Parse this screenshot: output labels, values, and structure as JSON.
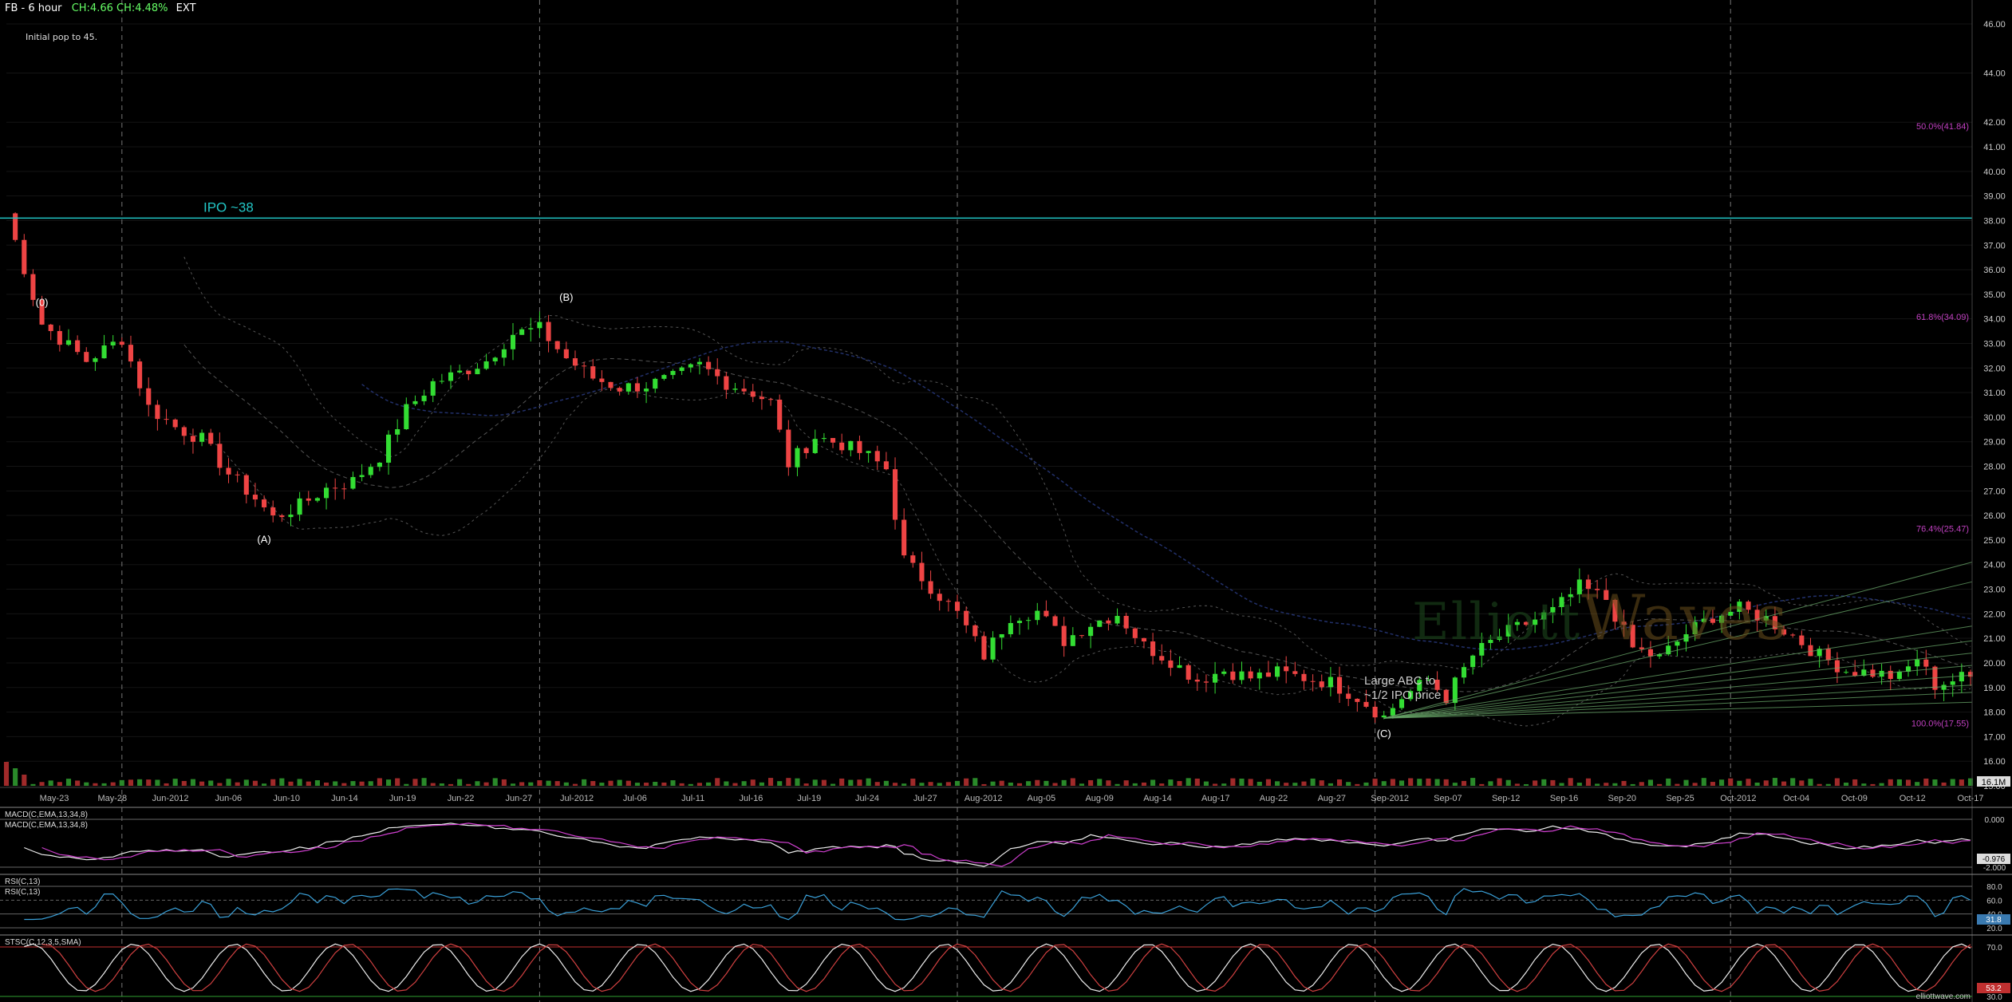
{
  "header": {
    "symbol": "FB - 6 hour",
    "change": "CH:4.66  CH:4.48%",
    "session": "EXT"
  },
  "note": "Initial pop to 45.",
  "watermark": {
    "left": "Elliott",
    "right": "Waves"
  },
  "colors": {
    "up": "#33dd33",
    "down": "#ee4444",
    "ipo_line": "#22c6c6",
    "fib": "#c040c0",
    "bg": "#000000"
  },
  "chart_data": {
    "type": "candlestick",
    "title": "FB - 6 hour",
    "price_axis": {
      "min": 15,
      "max": 46,
      "ticks": [
        "15.00",
        "16.00",
        "17.00",
        "18.00",
        "19.00",
        "20.00",
        "21.00",
        "22.00",
        "23.00",
        "24.00",
        "25.00",
        "26.00",
        "27.00",
        "28.00",
        "29.00",
        "30.00",
        "31.00",
        "32.00",
        "33.00",
        "34.00",
        "35.00",
        "36.00",
        "37.00",
        "38.00",
        "39.00",
        "40.00",
        "41.00",
        "42.00",
        "44.00",
        "46.00"
      ]
    },
    "x_labels": [
      "May-23",
      "May-28",
      "Jun-2012",
      "Jun-06",
      "Jun-10",
      "Jun-14",
      "Jun-19",
      "Jun-22",
      "Jun-27",
      "Jul-2012",
      "Jul-06",
      "Jul-11",
      "Jul-16",
      "Jul-19",
      "Jul-24",
      "Jul-27",
      "Aug-2012",
      "Aug-05",
      "Aug-09",
      "Aug-14",
      "Aug-17",
      "Aug-22",
      "Aug-27",
      "Sep-2012",
      "Sep-07",
      "Sep-12",
      "Sep-16",
      "Sep-20",
      "Sep-25",
      "Oct-2012",
      "Oct-04",
      "Oct-09",
      "Oct-12",
      "Oct-17"
    ],
    "close_path": [
      [
        0,
        38.3
      ],
      [
        4,
        33.8
      ],
      [
        9,
        32.3
      ],
      [
        13,
        33.2
      ],
      [
        16,
        30.4
      ],
      [
        19,
        29.6
      ],
      [
        22,
        29.1
      ],
      [
        25,
        27.7
      ],
      [
        28,
        26.7
      ],
      [
        30,
        25.9
      ],
      [
        33,
        26.4
      ],
      [
        36,
        27.1
      ],
      [
        39,
        27.4
      ],
      [
        42,
        28.4
      ],
      [
        45,
        30.3
      ],
      [
        48,
        31.4
      ],
      [
        51,
        31.8
      ],
      [
        54,
        32.3
      ],
      [
        57,
        33.4
      ],
      [
        60,
        33.6
      ],
      [
        63,
        32.4
      ],
      [
        66,
        31.6
      ],
      [
        69,
        31.2
      ],
      [
        72,
        31.3
      ],
      [
        75,
        31.6
      ],
      [
        78,
        32.1
      ],
      [
        81,
        31.4
      ],
      [
        84,
        31.0
      ],
      [
        86,
        30.6
      ],
      [
        88,
        28.1
      ],
      [
        91,
        29.2
      ],
      [
        94,
        28.9
      ],
      [
        97,
        28.4
      ],
      [
        99,
        27.9
      ],
      [
        101,
        24.2
      ],
      [
        104,
        23.1
      ],
      [
        107,
        22.0
      ],
      [
        110,
        20.3
      ],
      [
        113,
        21.9
      ],
      [
        116,
        22.1
      ],
      [
        119,
        20.9
      ],
      [
        122,
        21.6
      ],
      [
        125,
        22.0
      ],
      [
        128,
        20.7
      ],
      [
        131,
        20.1
      ],
      [
        134,
        19.3
      ],
      [
        137,
        19.7
      ],
      [
        140,
        19.4
      ],
      [
        143,
        19.6
      ],
      [
        146,
        19.4
      ],
      [
        149,
        19.2
      ],
      [
        152,
        18.6
      ],
      [
        155,
        17.8
      ],
      [
        157,
        18.6
      ],
      [
        160,
        19.3
      ],
      [
        162,
        18.6
      ],
      [
        165,
        20.3
      ],
      [
        168,
        21.1
      ],
      [
        171,
        21.6
      ],
      [
        174,
        22.1
      ],
      [
        177,
        23.1
      ],
      [
        180,
        22.6
      ],
      [
        183,
        20.6
      ],
      [
        186,
        20.2
      ],
      [
        189,
        21.2
      ],
      [
        192,
        21.9
      ],
      [
        195,
        22.2
      ],
      [
        198,
        21.8
      ],
      [
        201,
        21.1
      ],
      [
        204,
        20.3
      ],
      [
        207,
        19.7
      ],
      [
        210,
        19.6
      ],
      [
        213,
        19.4
      ],
      [
        215,
        20.2
      ],
      [
        217,
        19.1
      ],
      [
        220,
        19.4
      ]
    ],
    "x_count": 222,
    "volume_label": "16.1M",
    "wave_labels": [
      {
        "text": "(0)",
        "x": 4,
        "y": 34.4
      },
      {
        "text": "(A)",
        "x": 29,
        "y": 25.6
      },
      {
        "text": "(B)",
        "x": 63,
        "y": 34.6
      },
      {
        "text": "(C)",
        "x": 155,
        "y": 17.7
      }
    ],
    "ipo_line": {
      "value": 38.1,
      "label": "IPO ~38"
    },
    "fib_levels": [
      {
        "label": "50.0%(41.84)",
        "value": 41.84
      },
      {
        "label": "61.8%(34.09)",
        "value": 34.09
      },
      {
        "label": "76.4%(25.47)",
        "value": 25.47
      },
      {
        "label": "100.0%(17.55)",
        "value": 17.55
      }
    ],
    "annotation": [
      "Large ABC to",
      "~1/2 IPO price"
    ],
    "macd": {
      "label1": "MACD(C,EMA,13,34,8)",
      "label2": "MACD(C,EMA,13,34,8)",
      "ticks": [
        "0.000",
        "-2.000"
      ],
      "value": "-0.976"
    },
    "rsi": {
      "label1": "RSI(C,13)",
      "label2": "RSI(C,13)",
      "ticks": [
        "80.0",
        "60.0",
        "40.0",
        "20.0"
      ],
      "value": "31.8"
    },
    "stoch": {
      "label": "STSC(C,12,3,5,SMA)",
      "ticks": [
        "70.0",
        "30.0"
      ],
      "value": "53.2"
    },
    "credit": "elliottwave.com"
  }
}
